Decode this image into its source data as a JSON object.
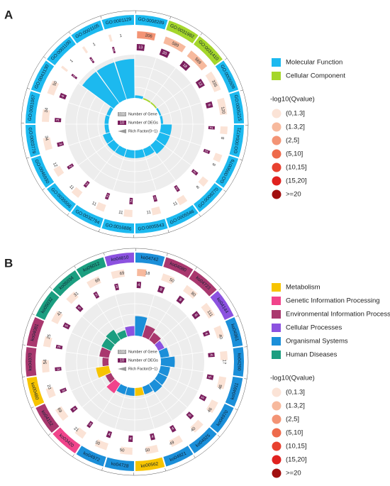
{
  "chart_data": [
    {
      "type": "circular-enrichment",
      "panel": "A",
      "classes": [
        {
          "name": "Molecular Function",
          "color": "#1cb9ef"
        },
        {
          "name": "Cellular Component",
          "color": "#a5d62b"
        }
      ],
      "items": [
        {
          "id": "GO:0008289",
          "class": "Molecular Function",
          "genes": 206,
          "degs": 13,
          "rich": 0.06,
          "qvalue": "(2,5]"
        },
        {
          "id": "GO:0031982",
          "class": "Cellular Component",
          "genes": 589,
          "degs": 20,
          "rich": 0.03,
          "qvalue": "(1.3,2]"
        },
        {
          "id": "GO:0031410",
          "class": "Cellular Component",
          "genes": 569,
          "degs": 18,
          "rich": 0.03,
          "qvalue": "(1.3,2]"
        },
        {
          "id": "GO:0005509",
          "class": "Molecular Function",
          "genes": 335,
          "degs": 12,
          "rich": 0.04,
          "qvalue": "(0,1.3]"
        },
        {
          "id": "GO:0005215",
          "class": "Molecular Function",
          "genes": 120,
          "degs": 6,
          "rich": 0.05,
          "qvalue": "(0,1.3]"
        },
        {
          "id": "GO:0004721",
          "class": "Molecular Function",
          "genes": 8,
          "degs": 2,
          "rich": 0.25,
          "qvalue": "(0,1.3]"
        },
        {
          "id": "GO:0090079",
          "class": "Molecular Function",
          "genes": 8,
          "degs": 2,
          "rich": 0.25,
          "qvalue": "(0,1.3]"
        },
        {
          "id": "GO:0008270",
          "class": "Molecular Function",
          "genes": 8,
          "degs": 2,
          "rich": 0.25,
          "qvalue": "(0,1.3]"
        },
        {
          "id": "GO:0005546",
          "class": "Molecular Function",
          "genes": 11,
          "degs": 2,
          "rich": 0.18,
          "qvalue": "(0,1.3]"
        },
        {
          "id": "GO:0005543",
          "class": "Molecular Function",
          "genes": 11,
          "degs": 2,
          "rich": 0.18,
          "qvalue": "(0,1.3]"
        },
        {
          "id": "GO:0016886",
          "class": "Molecular Function",
          "genes": 11,
          "degs": 2,
          "rich": 0.18,
          "qvalue": "(0,1.3]"
        },
        {
          "id": "GO:0032794",
          "class": "Molecular Function",
          "genes": 11,
          "degs": 2,
          "rich": 0.18,
          "qvalue": "(0,1.3]"
        },
        {
          "id": "GO:0035556",
          "class": "Molecular Function",
          "genes": 11,
          "degs": 2,
          "rich": 0.18,
          "qvalue": "(0,1.3]"
        },
        {
          "id": "GO:0046930",
          "class": "Molecular Function",
          "genes": 12,
          "degs": 2,
          "rich": 0.17,
          "qvalue": "(0,1.3]"
        },
        {
          "id": "GO:0003779",
          "class": "Molecular Function",
          "genes": 34,
          "degs": 3,
          "rich": 0.09,
          "qvalue": "(0,1.3]"
        },
        {
          "id": "GO:0001067",
          "class": "Molecular Function",
          "genes": 34,
          "degs": 3,
          "rich": 0.09,
          "qvalue": "(0,1.3]"
        },
        {
          "id": "GO:0043130",
          "class": "Molecular Function",
          "genes": 50,
          "degs": 4,
          "rich": 0.08,
          "qvalue": "(0,1.3]"
        },
        {
          "id": "GO:0001100",
          "class": "Molecular Function",
          "genes": 1,
          "degs": 1,
          "rich": 0.9,
          "qvalue": "(0,1.3]"
        },
        {
          "id": "GO:0001105",
          "class": "Molecular Function",
          "genes": 1,
          "degs": 1,
          "rich": 0.9,
          "qvalue": "(0,1.3]"
        },
        {
          "id": "GO:0001129",
          "class": "Molecular Function",
          "genes": 1,
          "degs": 1,
          "rich": 0.9,
          "qvalue": "(0,1.3]"
        }
      ],
      "key": {
        "gene_value": 100,
        "gene_label": "Number of Gene",
        "gene_color": "#a3a3a3",
        "deg_value": 10,
        "deg_label": "Number of DEGs",
        "deg_color": "#7b1f5e",
        "rich_label": "Rich Factor(0~1)"
      },
      "qvalue_title": "-log10(Qvalue)",
      "qvalue_levels": [
        {
          "label": "(0,1.3]",
          "color": "#fbe3d6"
        },
        {
          "label": "(1.3,2]",
          "color": "#f7b99d"
        },
        {
          "label": "(2,5]",
          "color": "#f39475"
        },
        {
          "label": "(5,10]",
          "color": "#ee6a4b"
        },
        {
          "label": "(10,15]",
          "color": "#e8412f"
        },
        {
          "label": "(15,20]",
          "color": "#e0211f"
        },
        {
          "label": ">=20",
          "color": "#a10f0f"
        }
      ]
    },
    {
      "type": "circular-enrichment",
      "panel": "B",
      "classes": [
        {
          "name": "Metabolism",
          "color": "#f7c400"
        },
        {
          "name": "Genetic Information Processing",
          "color": "#f1448b"
        },
        {
          "name": "Environmental Information Processing",
          "color": "#a9386e"
        },
        {
          "name": "Cellular Processes",
          "color": "#8c52e0"
        },
        {
          "name": "Organismal Systems",
          "color": "#1b8fd9"
        },
        {
          "name": "Human Diseases",
          "color": "#1b9e80"
        }
      ],
      "items": [
        {
          "id": "ko04742",
          "class": "Organismal Systems",
          "genes": 18,
          "degs": 4,
          "rich": 0.45,
          "qvalue": "(1.3,2]"
        },
        {
          "id": "ko04080",
          "class": "Environmental Information Processing",
          "genes": 50,
          "degs": 8,
          "rich": 0.28,
          "qvalue": "(0,1.3]"
        },
        {
          "id": "ko04723",
          "class": "Environmental Information Processing",
          "genes": 80,
          "degs": 8,
          "rich": 0.2,
          "qvalue": "(0,1.3]"
        },
        {
          "id": "ko04144",
          "class": "Cellular Processes",
          "genes": 111,
          "degs": 8,
          "rich": 0.15,
          "qvalue": "(0,1.3]"
        },
        {
          "id": "ko04961",
          "class": "Organismal Systems",
          "genes": 40,
          "degs": 4,
          "rich": 0.2,
          "qvalue": "(0,1.3]"
        },
        {
          "id": "ko04260",
          "class": "Organismal Systems",
          "genes": 17,
          "degs": 4,
          "rich": 0.32,
          "qvalue": "(0,1.3]"
        },
        {
          "id": "ko04911",
          "class": "Organismal Systems",
          "genes": 46,
          "degs": 5,
          "rich": 0.22,
          "qvalue": "(0,1.3]"
        },
        {
          "id": "ko04970",
          "class": "Organismal Systems",
          "genes": 46,
          "degs": 5,
          "rich": 0.22,
          "qvalue": "(0,1.3]"
        },
        {
          "id": "ko04925",
          "class": "Organismal Systems",
          "genes": 40,
          "degs": 5,
          "rich": 0.24,
          "qvalue": "(0,1.3]"
        },
        {
          "id": "ko04921",
          "class": "Organismal Systems",
          "genes": 49,
          "degs": 4,
          "rich": 0.18,
          "qvalue": "(0,1.3]"
        },
        {
          "id": "ko00562",
          "class": "Metabolism",
          "genes": 50,
          "degs": 4,
          "rich": 0.18,
          "qvalue": "(0,1.3]"
        },
        {
          "id": "ko04728",
          "class": "Organismal Systems",
          "genes": 50,
          "degs": 4,
          "rich": 0.18,
          "qvalue": "(0,1.3]"
        },
        {
          "id": "ko04972",
          "class": "Organismal Systems",
          "genes": 50,
          "degs": 4,
          "rich": 0.18,
          "qvalue": "(0,1.3]"
        },
        {
          "id": "ko03420",
          "class": "Genetic Information Processing",
          "genes": 21,
          "degs": 3,
          "rich": 0.26,
          "qvalue": "(0,1.3]"
        },
        {
          "id": "ko04152",
          "class": "Environmental Information Processing",
          "genes": 69,
          "degs": 4,
          "rich": 0.14,
          "qvalue": "(0,1.3]"
        },
        {
          "id": "ko00480",
          "class": "Metabolism",
          "genes": 23,
          "degs": 3,
          "rich": 0.3,
          "qvalue": "(0,1.3]"
        },
        {
          "id": "ko04070",
          "class": "Environmental Information Processing",
          "genes": 54,
          "degs": 3,
          "rich": 0.14,
          "qvalue": "(0,1.3]"
        },
        {
          "id": "ko04081",
          "class": "Environmental Information Processing",
          "genes": 25,
          "degs": 3,
          "rich": 0.22,
          "qvalue": "(0,1.3]"
        },
        {
          "id": "ko05032",
          "class": "Human Diseases",
          "genes": 41,
          "degs": 5,
          "rich": 0.24,
          "qvalue": "(0,1.3]"
        },
        {
          "id": "ko05034",
          "class": "Human Diseases",
          "genes": 31,
          "degs": 5,
          "rich": 0.28,
          "qvalue": "(0,1.3]"
        },
        {
          "id": "ko05012",
          "class": "Human Diseases",
          "genes": 69,
          "degs": 3,
          "rich": 0.16,
          "qvalue": "(0,1.3]"
        },
        {
          "id": "ko04810",
          "class": "Cellular Processes",
          "genes": 69,
          "degs": 3,
          "rich": 0.22,
          "qvalue": "(0,1.3]"
        }
      ],
      "key": {
        "gene_value": 100,
        "gene_label": "Number of Gene",
        "gene_color": "#a3a3a3",
        "deg_value": 10,
        "deg_label": "Number of DEGs",
        "deg_color": "#7b1f5e",
        "rich_label": "Rich Factor(0~1)"
      },
      "qvalue_title": "-log10(Qvalue)",
      "qvalue_levels": [
        {
          "label": "(0,1.3]",
          "color": "#fbe3d6"
        },
        {
          "label": "(1.3,2]",
          "color": "#f7b99d"
        },
        {
          "label": "(2,5]",
          "color": "#f39475"
        },
        {
          "label": "(5,10]",
          "color": "#ee6a4b"
        },
        {
          "label": "(10,15]",
          "color": "#e8412f"
        },
        {
          "label": "(15,20]",
          "color": "#e0211f"
        },
        {
          "label": ">=20",
          "color": "#a10f0f"
        }
      ]
    }
  ]
}
